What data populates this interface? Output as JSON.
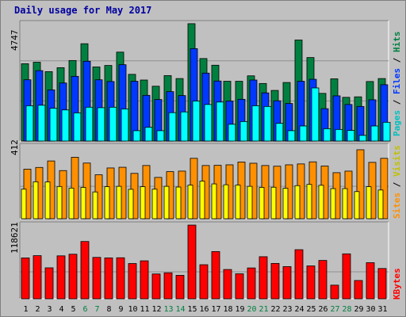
{
  "title": "Daily usage for May 2017",
  "colors": {
    "background": "#c0c0c0",
    "plot_bg": "#c0c0c0",
    "pages": "#00ffff",
    "files": "#0038ff",
    "hits": "#008040",
    "sites": "#ff9000",
    "visits": "#ffff00",
    "kbytes": "#ff0000",
    "weekend_tick": "#008040",
    "weekday_tick": "#000000",
    "title": "#0000a0"
  },
  "panels": {
    "top": {
      "max_label": "4747",
      "legend": [
        "Pages",
        "Files",
        "Hits"
      ]
    },
    "middle": {
      "max_label": "412",
      "legend": [
        "Sites",
        "Visits"
      ]
    },
    "bottom": {
      "max_label": "118621",
      "legend": [
        "KBytes"
      ]
    }
  },
  "chart_data": {
    "type": "bar",
    "categories": [
      "1",
      "2",
      "3",
      "4",
      "5",
      "6",
      "7",
      "8",
      "9",
      "10",
      "11",
      "12",
      "13",
      "14",
      "15",
      "16",
      "17",
      "18",
      "19",
      "20",
      "21",
      "22",
      "23",
      "24",
      "25",
      "26",
      "27",
      "28",
      "29",
      "30",
      "31"
    ],
    "weekend_days": [
      "6",
      "7",
      "13",
      "14",
      "20",
      "21",
      "27",
      "28"
    ],
    "hits_panel": {
      "ymax": 4747,
      "series": [
        {
          "name": "Hits",
          "values": [
            3130,
            3190,
            2810,
            2970,
            3260,
            3940,
            3000,
            3060,
            3600,
            2700,
            2470,
            2220,
            2650,
            2530,
            4750,
            3340,
            3070,
            2420,
            2420,
            2640,
            2330,
            2050,
            2370,
            4090,
            3380,
            1930,
            2520,
            1770,
            1790,
            2410,
            2530
          ]
        },
        {
          "name": "Files",
          "values": [
            2480,
            2850,
            2070,
            2350,
            2620,
            3230,
            2480,
            2410,
            3090,
            2420,
            1850,
            1680,
            2000,
            1840,
            3740,
            2750,
            2430,
            1620,
            1690,
            2470,
            1950,
            1630,
            1520,
            2420,
            2500,
            1310,
            1830,
            1480,
            1400,
            1670,
            2280
          ]
        },
        {
          "name": "Pages",
          "values": [
            1430,
            1450,
            1330,
            1260,
            1140,
            1370,
            1350,
            1370,
            1300,
            420,
            560,
            420,
            1150,
            1180,
            1620,
            1480,
            1580,
            680,
            790,
            1430,
            1400,
            720,
            420,
            610,
            2150,
            500,
            470,
            430,
            230,
            610,
            760
          ]
        }
      ]
    },
    "sites_panel": {
      "ymax": 412,
      "series": [
        {
          "name": "Sites",
          "values": [
            283,
            293,
            330,
            275,
            351,
            318,
            251,
            290,
            294,
            259,
            304,
            236,
            269,
            272,
            345,
            304,
            305,
            308,
            324,
            317,
            304,
            300,
            308,
            313,
            325,
            301,
            263,
            272,
            394,
            322,
            345
          ]
        },
        {
          "name": "Visits",
          "values": [
            169,
            211,
            210,
            184,
            175,
            179,
            153,
            183,
            185,
            168,
            183,
            169,
            185,
            181,
            192,
            215,
            199,
            194,
            192,
            185,
            179,
            180,
            174,
            189,
            196,
            191,
            172,
            172,
            155,
            183,
            164
          ]
        }
      ]
    },
    "kbytes_panel": {
      "ymax": 118621,
      "series": [
        {
          "name": "KBytes",
          "values": [
            65700,
            69400,
            49800,
            69100,
            71700,
            92200,
            66600,
            65800,
            66000,
            56700,
            61100,
            39900,
            41800,
            37700,
            118600,
            54800,
            76000,
            47100,
            40200,
            49600,
            67700,
            56900,
            51800,
            79000,
            52900,
            61700,
            21900,
            72300,
            29400,
            58100,
            48700
          ]
        }
      ]
    }
  }
}
